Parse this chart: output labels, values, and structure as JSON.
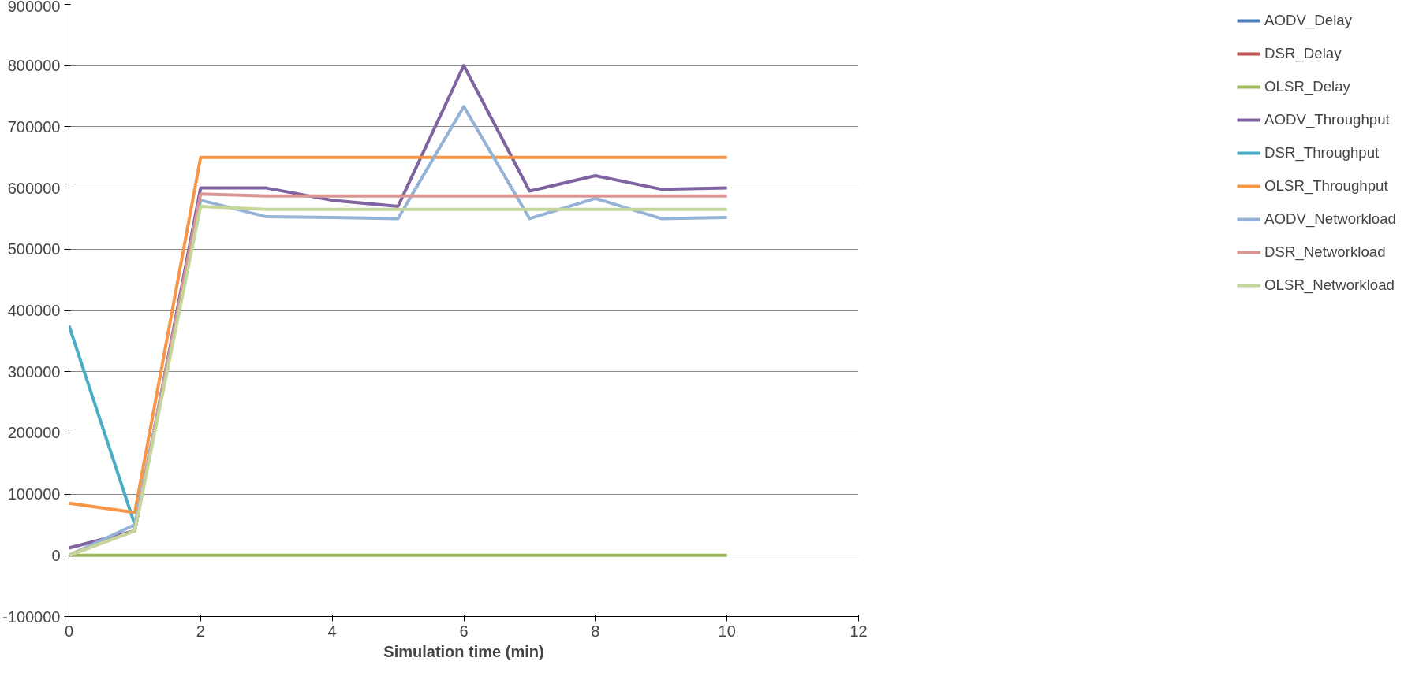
{
  "chart_data": {
    "type": "line",
    "xlabel": "Simulation time (min)",
    "x": [
      0,
      1,
      2,
      3,
      4,
      5,
      6,
      7,
      8,
      9,
      10
    ],
    "series": [
      {
        "name": "AODV_Delay",
        "color": "#4f81bd",
        "values": [
          null,
          null,
          null,
          null,
          null,
          null,
          null,
          null,
          null,
          null,
          null
        ]
      },
      {
        "name": "DSR_Delay",
        "color": "#c0504d",
        "values": [
          null,
          null,
          null,
          null,
          null,
          null,
          null,
          null,
          null,
          null,
          null
        ]
      },
      {
        "name": "OLSR_Delay",
        "color": "#9bbb59",
        "values": [
          0,
          0,
          0,
          0,
          0,
          0,
          0,
          0,
          0,
          0,
          0
        ]
      },
      {
        "name": "AODV_Throughput",
        "color": "#8064a2",
        "values": [
          12000,
          40000,
          600000,
          600000,
          580000,
          570000,
          800000,
          595000,
          620000,
          598000,
          600000
        ]
      },
      {
        "name": "DSR_Throughput",
        "color": "#4bacc6",
        "values": [
          375000,
          50000,
          null,
          null,
          null,
          null,
          null,
          null,
          null,
          null,
          null
        ]
      },
      {
        "name": "OLSR_Throughput",
        "color": "#f79646",
        "values": [
          85000,
          70000,
          650000,
          650000,
          650000,
          650000,
          650000,
          650000,
          650000,
          650000,
          650000
        ]
      },
      {
        "name": "AODV_Networkload",
        "color": "#95b3d7",
        "values": [
          0,
          50000,
          580000,
          553000,
          552000,
          550000,
          733000,
          550000,
          583000,
          550000,
          552000
        ]
      },
      {
        "name": "DSR_Networkload",
        "color": "#d99694",
        "values": [
          0,
          40000,
          590000,
          587000,
          587000,
          587000,
          587000,
          587000,
          587000,
          587000,
          587000
        ]
      },
      {
        "name": "OLSR_Networkload",
        "color": "#c3d69b",
        "values": [
          0,
          40000,
          570000,
          565000,
          565000,
          565000,
          565000,
          565000,
          565000,
          565000,
          565000
        ]
      }
    ],
    "xlim": [
      0,
      12
    ],
    "xticks": [
      0,
      2,
      4,
      6,
      8,
      10,
      12
    ],
    "ylim": [
      -100000,
      900000
    ],
    "yticks": [
      -100000,
      0,
      100000,
      200000,
      300000,
      400000,
      500000,
      600000,
      700000,
      800000,
      900000
    ],
    "grid": "y",
    "legend": "right",
    "marker": "none",
    "line_style": "solid"
  }
}
